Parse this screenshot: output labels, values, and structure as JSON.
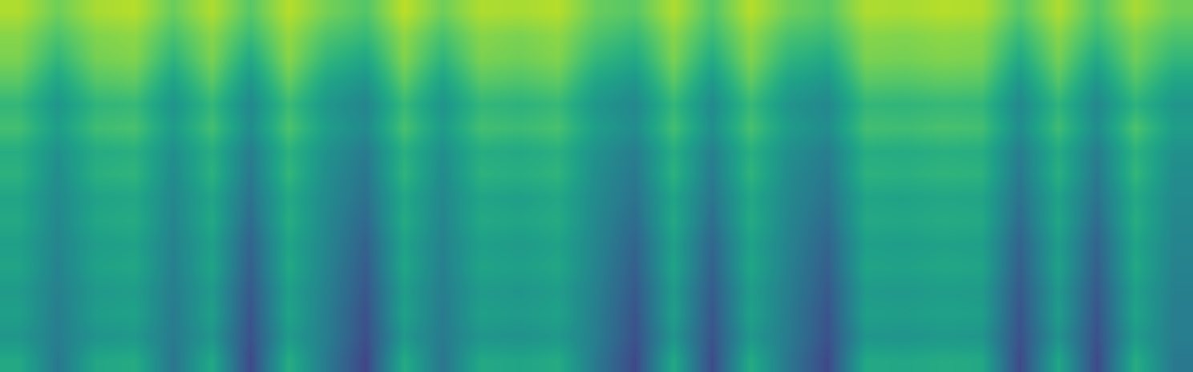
{
  "chart_data": {
    "type": "heatmap",
    "color": "viridis",
    "tick_labels": false,
    "zlim": [
      0,
      100
    ],
    "cells": [
      [
        88,
        78,
        87,
        89,
        77,
        88,
        74,
        89,
        79,
        73,
        90,
        78,
        88,
        87,
        89,
        77,
        74,
        88,
        73,
        89,
        78,
        74,
        88,
        87,
        89,
        88,
        74,
        88,
        73,
        87,
        78
      ],
      [
        82,
        72,
        81,
        83,
        71,
        82,
        68,
        84,
        72,
        67,
        83,
        71,
        82,
        80,
        83,
        72,
        67,
        82,
        68,
        83,
        71,
        68,
        82,
        81,
        83,
        82,
        67,
        82,
        68,
        80,
        72
      ],
      [
        80,
        66,
        79,
        81,
        65,
        80,
        60,
        82,
        66,
        59,
        81,
        65,
        80,
        78,
        81,
        66,
        60,
        80,
        61,
        81,
        65,
        60,
        80,
        79,
        81,
        80,
        60,
        79,
        60,
        78,
        66
      ],
      [
        74,
        58,
        73,
        75,
        57,
        74,
        52,
        76,
        58,
        51,
        75,
        57,
        74,
        72,
        75,
        58,
        52,
        74,
        53,
        75,
        57,
        52,
        74,
        73,
        75,
        74,
        52,
        73,
        52,
        72,
        58
      ],
      [
        66,
        52,
        65,
        67,
        51,
        66,
        46,
        68,
        52,
        45,
        67,
        51,
        66,
        64,
        67,
        52,
        46,
        66,
        47,
        67,
        51,
        46,
        66,
        65,
        67,
        66,
        46,
        65,
        46,
        64,
        52
      ],
      [
        70,
        55,
        69,
        71,
        54,
        70,
        48,
        72,
        55,
        47,
        71,
        54,
        70,
        68,
        71,
        55,
        48,
        70,
        49,
        71,
        54,
        48,
        70,
        69,
        71,
        70,
        48,
        69,
        48,
        72,
        55
      ],
      [
        62,
        50,
        61,
        63,
        49,
        62,
        42,
        64,
        50,
        41,
        63,
        49,
        62,
        60,
        63,
        50,
        42,
        62,
        43,
        63,
        49,
        42,
        62,
        61,
        63,
        62,
        42,
        61,
        42,
        64,
        50
      ],
      [
        64,
        48,
        63,
        65,
        47,
        64,
        40,
        66,
        48,
        39,
        65,
        47,
        64,
        62,
        65,
        48,
        40,
        64,
        41,
        65,
        47,
        40,
        64,
        63,
        65,
        64,
        40,
        63,
        40,
        66,
        48
      ],
      [
        58,
        47,
        57,
        59,
        46,
        58,
        38,
        60,
        47,
        37,
        59,
        46,
        58,
        56,
        59,
        47,
        38,
        58,
        39,
        59,
        46,
        38,
        58,
        57,
        59,
        58,
        38,
        57,
        38,
        60,
        47
      ],
      [
        60,
        46,
        59,
        61,
        45,
        60,
        35,
        62,
        46,
        34,
        61,
        45,
        60,
        58,
        61,
        46,
        35,
        60,
        36,
        61,
        45,
        35,
        60,
        59,
        61,
        60,
        35,
        59,
        35,
        62,
        46
      ],
      [
        56,
        45,
        55,
        57,
        44,
        56,
        32,
        58,
        45,
        31,
        57,
        44,
        56,
        54,
        57,
        45,
        32,
        56,
        33,
        57,
        44,
        32,
        56,
        55,
        57,
        56,
        32,
        55,
        32,
        58,
        45
      ],
      [
        58,
        44,
        57,
        59,
        43,
        58,
        30,
        60,
        44,
        29,
        59,
        43,
        58,
        56,
        59,
        44,
        30,
        58,
        31,
        59,
        43,
        30,
        58,
        57,
        59,
        58,
        30,
        57,
        30,
        60,
        44
      ],
      [
        54,
        43,
        53,
        55,
        42,
        54,
        28,
        56,
        43,
        27,
        55,
        42,
        54,
        52,
        55,
        43,
        28,
        54,
        29,
        55,
        42,
        28,
        54,
        53,
        55,
        54,
        28,
        53,
        28,
        56,
        43
      ],
      [
        56,
        42,
        55,
        57,
        41,
        56,
        26,
        58,
        42,
        25,
        57,
        41,
        56,
        54,
        57,
        42,
        26,
        56,
        27,
        57,
        41,
        26,
        56,
        55,
        57,
        56,
        26,
        55,
        26,
        58,
        42
      ],
      [
        52,
        42,
        51,
        53,
        41,
        52,
        25,
        54,
        42,
        24,
        53,
        41,
        52,
        50,
        53,
        42,
        25,
        52,
        26,
        53,
        41,
        25,
        52,
        51,
        53,
        52,
        25,
        51,
        25,
        54,
        42
      ],
      [
        60,
        40,
        59,
        61,
        39,
        60,
        22,
        62,
        40,
        21,
        61,
        39,
        60,
        58,
        61,
        40,
        22,
        60,
        23,
        61,
        39,
        22,
        60,
        59,
        61,
        60,
        22,
        59,
        22,
        62,
        40
      ]
    ]
  }
}
